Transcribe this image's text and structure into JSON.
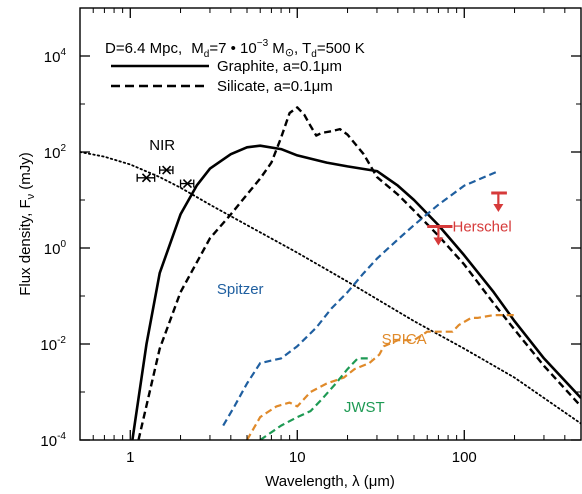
{
  "chart_data": {
    "type": "line",
    "title_parts": {
      "distance": "D=6.4 Mpc,",
      "mass_symbol": "M",
      "mass_sub": "d",
      "mass_eq": "=7 • 10",
      "mass_exp": "−3",
      "mass_unit": " M",
      "sun_symbol": "⊙",
      "temp_symbol": ", T",
      "temp_sub": "d",
      "temp_eq": "=500 K"
    },
    "xlabel": "Wavelength, λ (μm)",
    "ylabel_main": "Flux density, F",
    "ylabel_sub": "ν",
    "ylabel_unit": " (mJy)",
    "x_scale": "log",
    "y_scale": "log",
    "xlim": [
      0.5,
      500
    ],
    "ylim": [
      0.0001,
      100000
    ],
    "x_ticks": [
      {
        "value": 1,
        "label": "1"
      },
      {
        "value": 10,
        "label": "10"
      },
      {
        "value": 100,
        "label": "100"
      }
    ],
    "y_ticks": [
      {
        "value": 0.0001,
        "base": "10",
        "exp": "-4"
      },
      {
        "value": 0.01,
        "base": "10",
        "exp": "-2"
      },
      {
        "value": 1,
        "base": "10",
        "exp": "0"
      },
      {
        "value": 100,
        "base": "10",
        "exp": "2"
      },
      {
        "value": 10000,
        "base": "10",
        "exp": "4"
      }
    ],
    "legend": [
      {
        "label": "Graphite, a=0.1μm",
        "style": "solid"
      },
      {
        "label": "Silicate, a=0.1μm",
        "style": "dashed"
      }
    ],
    "series": [
      {
        "name": "Graphite, a=0.1μm",
        "style": "solid",
        "color": "#000000",
        "points": [
          [
            1.03,
            0.0001
          ],
          [
            1.25,
            0.01
          ],
          [
            1.5,
            0.3
          ],
          [
            2,
            5
          ],
          [
            2.5,
            20
          ],
          [
            3,
            45
          ],
          [
            4,
            90
          ],
          [
            5,
            125
          ],
          [
            6,
            135
          ],
          [
            8,
            115
          ],
          [
            10,
            85
          ],
          [
            15,
            60
          ],
          [
            20,
            50
          ],
          [
            30,
            40
          ],
          [
            40,
            20
          ],
          [
            50,
            10
          ],
          [
            70,
            3
          ],
          [
            100,
            0.7
          ],
          [
            150,
            0.12
          ],
          [
            200,
            0.03
          ],
          [
            300,
            0.005
          ],
          [
            500,
            0.00075
          ]
        ]
      },
      {
        "name": "Silicate, a=0.1μm",
        "style": "dashed",
        "color": "#000000",
        "points": [
          [
            1.12,
            0.0001
          ],
          [
            1.5,
            0.008
          ],
          [
            2,
            0.12
          ],
          [
            3,
            1.6
          ],
          [
            4,
            5
          ],
          [
            5,
            13
          ],
          [
            6,
            28
          ],
          [
            7,
            60
          ],
          [
            8,
            200
          ],
          [
            9,
            650
          ],
          [
            10,
            850
          ],
          [
            11,
            600
          ],
          [
            12,
            350
          ],
          [
            13,
            220
          ],
          [
            14,
            250
          ],
          [
            16,
            270
          ],
          [
            18,
            300
          ],
          [
            20,
            230
          ],
          [
            25,
            90
          ],
          [
            30,
            30
          ],
          [
            40,
            13
          ],
          [
            50,
            6
          ],
          [
            70,
            1.8
          ],
          [
            100,
            0.45
          ],
          [
            150,
            0.07
          ],
          [
            200,
            0.02
          ],
          [
            300,
            0.0035
          ],
          [
            500,
            0.0005
          ]
        ]
      },
      {
        "name": "",
        "style": "dotted",
        "color": "#000000",
        "points": [
          [
            0.5,
            100
          ],
          [
            0.7,
            80
          ],
          [
            1,
            55
          ],
          [
            1.5,
            30
          ],
          [
            2,
            18
          ],
          [
            3,
            8
          ],
          [
            5,
            3
          ],
          [
            10,
            0.8
          ],
          [
            20,
            0.2
          ],
          [
            50,
            0.03
          ],
          [
            100,
            0.008
          ],
          [
            200,
            0.002
          ],
          [
            500,
            0.00022
          ]
        ]
      },
      {
        "name": "Spitzer",
        "style": "dashed",
        "color": "#1f5fa0",
        "points": [
          [
            3.6,
            0.0002
          ],
          [
            4.2,
            0.0005
          ],
          [
            5,
            0.0015
          ],
          [
            6,
            0.004
          ],
          [
            8,
            0.005
          ],
          [
            10,
            0.009
          ],
          [
            13,
            0.022
          ],
          [
            16,
            0.055
          ],
          [
            20,
            0.12
          ],
          [
            25,
            0.3
          ],
          [
            30,
            0.6
          ],
          [
            40,
            1.5
          ],
          [
            50,
            3
          ],
          [
            70,
            8
          ],
          [
            100,
            20
          ],
          [
            160,
            40
          ]
        ]
      },
      {
        "name": "SPICA",
        "style": "dashed",
        "color": "#e08a2a",
        "points": [
          [
            5,
            0.0001
          ],
          [
            6,
            0.0003
          ],
          [
            7.5,
            0.0005
          ],
          [
            9,
            0.0006
          ],
          [
            10,
            0.0005
          ],
          [
            12,
            0.001
          ],
          [
            15,
            0.0015
          ],
          [
            19,
            0.002
          ],
          [
            22,
            0.003
          ],
          [
            27,
            0.004
          ],
          [
            31,
            0.006
          ],
          [
            33,
            0.009
          ],
          [
            40,
            0.012
          ],
          [
            50,
            0.012
          ],
          [
            60,
            0.018
          ],
          [
            85,
            0.018
          ],
          [
            93,
            0.025
          ],
          [
            110,
            0.035
          ],
          [
            120,
            0.035
          ],
          [
            150,
            0.04
          ],
          [
            200,
            0.04
          ]
        ]
      },
      {
        "name": "JWST",
        "style": "dashed",
        "color": "#1e9a54",
        "points": [
          [
            6,
            0.0001
          ],
          [
            8,
            0.0002
          ],
          [
            10,
            0.0003
          ],
          [
            12,
            0.0004
          ],
          [
            14,
            0.0007
          ],
          [
            17,
            0.0015
          ],
          [
            20,
            0.003
          ],
          [
            23,
            0.005
          ],
          [
            28,
            0.005
          ]
        ]
      }
    ],
    "nir_points": [
      {
        "x": 1.25,
        "y": 29,
        "xerr": [
          1.1,
          1.4
        ]
      },
      {
        "x": 1.65,
        "y": 42,
        "xerr": [
          1.5,
          1.8
        ]
      },
      {
        "x": 2.2,
        "y": 22,
        "xerr": [
          2.0,
          2.4
        ]
      }
    ],
    "herschel_limits": [
      {
        "x": 70,
        "y": 2.8,
        "xerr": [
          60,
          85
        ]
      },
      {
        "x": 160,
        "y": 14,
        "xerr": [
          145,
          180
        ]
      }
    ],
    "annotations": [
      {
        "text": "NIR",
        "x": 1.3,
        "y": 110,
        "color": "#000000"
      },
      {
        "text": "Herschel",
        "x": 85,
        "y": 2.2,
        "color": "#d63a3a"
      },
      {
        "text": "Spitzer",
        "x": 3.3,
        "y": 0.11,
        "color": "#1f5fa0"
      },
      {
        "text": "SPICA",
        "x": 32,
        "y": 0.01,
        "color": "#e08a2a"
      },
      {
        "text": "JWST",
        "x": 19,
        "y": 0.00038,
        "color": "#1e9a54"
      }
    ],
    "colors": {
      "herschel": "#d63a3a",
      "spitzer": "#1f5fa0",
      "spica": "#e08a2a",
      "jwst": "#1e9a54"
    }
  }
}
